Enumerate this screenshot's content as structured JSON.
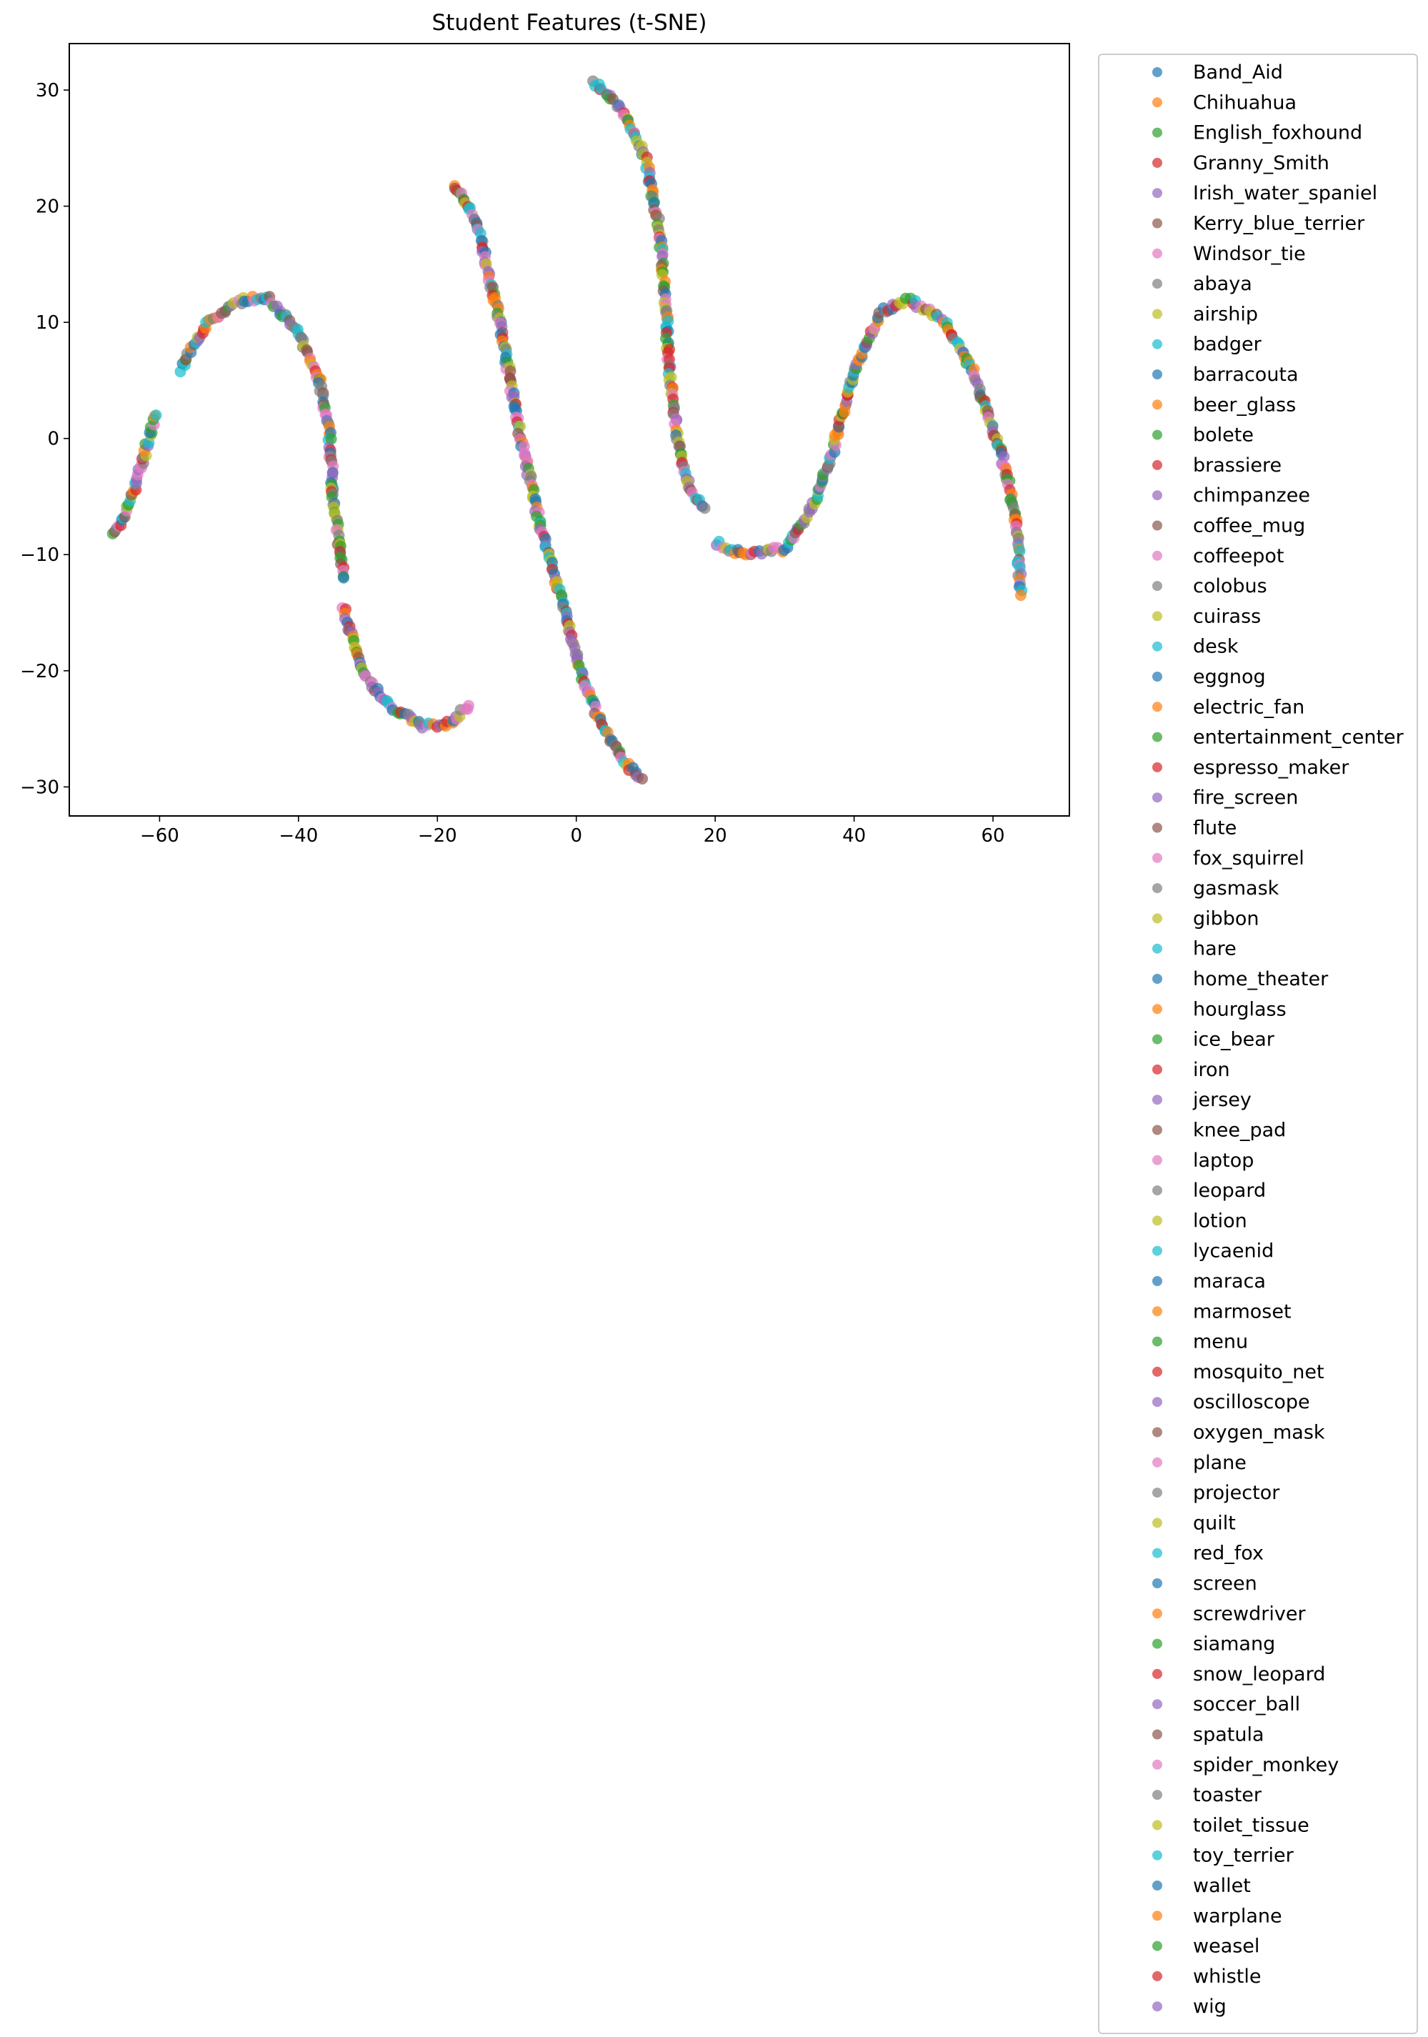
{
  "chart_data": {
    "type": "scatter",
    "title": "Student Features (t-SNE)",
    "xlabel": "",
    "ylabel": "",
    "xlim": [
      -73,
      71
    ],
    "ylim": [
      -32.5,
      34
    ],
    "xticks": [
      -60,
      -40,
      -20,
      0,
      20,
      40,
      60
    ],
    "yticks": [
      -30,
      -20,
      -10,
      0,
      10,
      20,
      30
    ],
    "grid": false,
    "legend_position": "outside-right",
    "marker_alpha": 0.7,
    "colors": [
      "#1f77b4",
      "#ff7f0e",
      "#2ca02c",
      "#d62728",
      "#9467bd",
      "#8c564b",
      "#e377c2",
      "#7f7f7f",
      "#bcbd22",
      "#17becf"
    ],
    "categories": [
      "Band_Aid",
      "Chihuahua",
      "English_foxhound",
      "Granny_Smith",
      "Irish_water_spaniel",
      "Kerry_blue_terrier",
      "Windsor_tie",
      "abaya",
      "airship",
      "badger",
      "barracouta",
      "beer_glass",
      "bolete",
      "brassiere",
      "chimpanzee",
      "coffee_mug",
      "coffeepot",
      "colobus",
      "cuirass",
      "desk",
      "eggnog",
      "electric_fan",
      "entertainment_center",
      "espresso_maker",
      "fire_screen",
      "flute",
      "fox_squirrel",
      "gasmask",
      "gibbon",
      "hare",
      "home_theater",
      "hourglass",
      "ice_bear",
      "iron",
      "jersey",
      "knee_pad",
      "laptop",
      "leopard",
      "lotion",
      "lycaenid",
      "maraca",
      "marmoset",
      "menu",
      "mosquito_net",
      "oscilloscope",
      "oxygen_mask",
      "plane",
      "projector",
      "quilt",
      "red_fox",
      "screen",
      "screwdriver",
      "siamang",
      "snow_leopard",
      "soccer_ball",
      "spatula",
      "spider_monkey",
      "toaster",
      "toilet_tissue",
      "toy_terrier",
      "wallet",
      "warplane",
      "weasel",
      "whistle",
      "wig"
    ],
    "point_clusters": [
      {
        "segment": "left-lower-arc",
        "approx_points": [
          [
            -66.5,
            -8.4
          ],
          [
            -64,
            -5
          ],
          [
            -62,
            -1
          ],
          [
            -60.5,
            2
          ]
        ]
      },
      {
        "segment": "left-upper-arc",
        "approx_points": [
          [
            -57,
            6
          ],
          [
            -53,
            10
          ],
          [
            -48,
            12
          ],
          [
            -44,
            12
          ],
          [
            -40,
            9
          ],
          [
            -37,
            5
          ],
          [
            -35.5,
            0
          ],
          [
            -35,
            -5
          ],
          [
            -34,
            -10
          ],
          [
            -33.5,
            -12
          ]
        ]
      },
      {
        "segment": "left-bottom-arc",
        "approx_points": [
          [
            -33.5,
            -14.5
          ],
          [
            -31,
            -20
          ],
          [
            -27,
            -23
          ],
          [
            -22,
            -24.8
          ],
          [
            -18,
            -24.5
          ],
          [
            -15.5,
            -23
          ]
        ]
      },
      {
        "segment": "middle-strand",
        "approx_points": [
          [
            -17.5,
            22
          ],
          [
            -14,
            18
          ],
          [
            -11,
            10
          ],
          [
            -8,
            0
          ],
          [
            -5,
            -8
          ],
          [
            -2,
            -14
          ],
          [
            1,
            -21
          ],
          [
            4,
            -25
          ],
          [
            7,
            -28
          ],
          [
            9.5,
            -29.3
          ]
        ]
      },
      {
        "segment": "right-upper-strand",
        "approx_points": [
          [
            2.5,
            30.8
          ],
          [
            7,
            28
          ],
          [
            10,
            24
          ],
          [
            12,
            18
          ],
          [
            13,
            10
          ],
          [
            13.5,
            5
          ],
          [
            15,
            -2
          ],
          [
            17,
            -5
          ],
          [
            18.5,
            -6
          ]
        ]
      },
      {
        "segment": "right-wave",
        "approx_points": [
          [
            20,
            -9
          ],
          [
            24,
            -10
          ],
          [
            30,
            -9.5
          ],
          [
            34,
            -6
          ],
          [
            37,
            -1
          ],
          [
            40,
            6
          ],
          [
            44,
            11
          ],
          [
            48,
            12
          ],
          [
            53,
            10
          ],
          [
            57,
            6
          ],
          [
            60,
            1
          ],
          [
            62,
            -3
          ],
          [
            63.5,
            -8
          ],
          [
            64,
            -13.5
          ]
        ]
      }
    ]
  }
}
